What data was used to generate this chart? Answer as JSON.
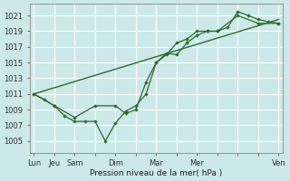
{
  "title": "Pression niveau de la mer( hPa )",
  "bg_color": "#cce8e8",
  "grid_color": "#ffffff",
  "line_color": "#2d6b2d",
  "yticks": [
    1005,
    1007,
    1009,
    1011,
    1013,
    1015,
    1017,
    1019,
    1021
  ],
  "ylim": [
    1003.5,
    1022.5
  ],
  "xlim": [
    -0.2,
    12.2
  ],
  "day_positions": [
    0,
    1,
    2,
    4,
    6,
    8,
    12
  ],
  "day_labels": [
    "Lun",
    "Jeu",
    "Sam",
    "Dim",
    "Mar",
    "Mer",
    "Ven"
  ],
  "minor_xticks": [
    0,
    1,
    2,
    3,
    4,
    5,
    6,
    7,
    8,
    9,
    10,
    11,
    12
  ],
  "line1_x": [
    0,
    0.5,
    1,
    1.5,
    2,
    2.5,
    3,
    3.5,
    4,
    4.5,
    5,
    5.5,
    6,
    6.5,
    7,
    7.5,
    8,
    8.5,
    9,
    9.5,
    10,
    10.5,
    11,
    11.5,
    12
  ],
  "line1_y": [
    1011,
    1010.3,
    1009.5,
    1008.2,
    1007.5,
    1007.5,
    1007.5,
    1005,
    1007.3,
    1008.8,
    1009.5,
    1011.0,
    1015.0,
    1016.2,
    1016.0,
    1017.5,
    1018.5,
    1019.0,
    1019.0,
    1019.5,
    1021.5,
    1021.0,
    1020.5,
    1020.2,
    1020.0
  ],
  "line2_x": [
    0,
    1,
    2,
    3,
    4,
    4.5,
    5,
    5.5,
    6,
    6.5,
    7,
    7.5,
    8,
    8.5,
    9,
    10,
    11,
    12
  ],
  "line2_y": [
    1011,
    1009.5,
    1008.0,
    1009.5,
    1009.5,
    1008.5,
    1009.0,
    1012.5,
    1015.0,
    1016.0,
    1017.5,
    1018.0,
    1019.0,
    1019.0,
    1019.0,
    1021.0,
    1020.0,
    1020.0
  ],
  "line3_x": [
    0,
    12
  ],
  "line3_y": [
    1011,
    1020.5
  ]
}
